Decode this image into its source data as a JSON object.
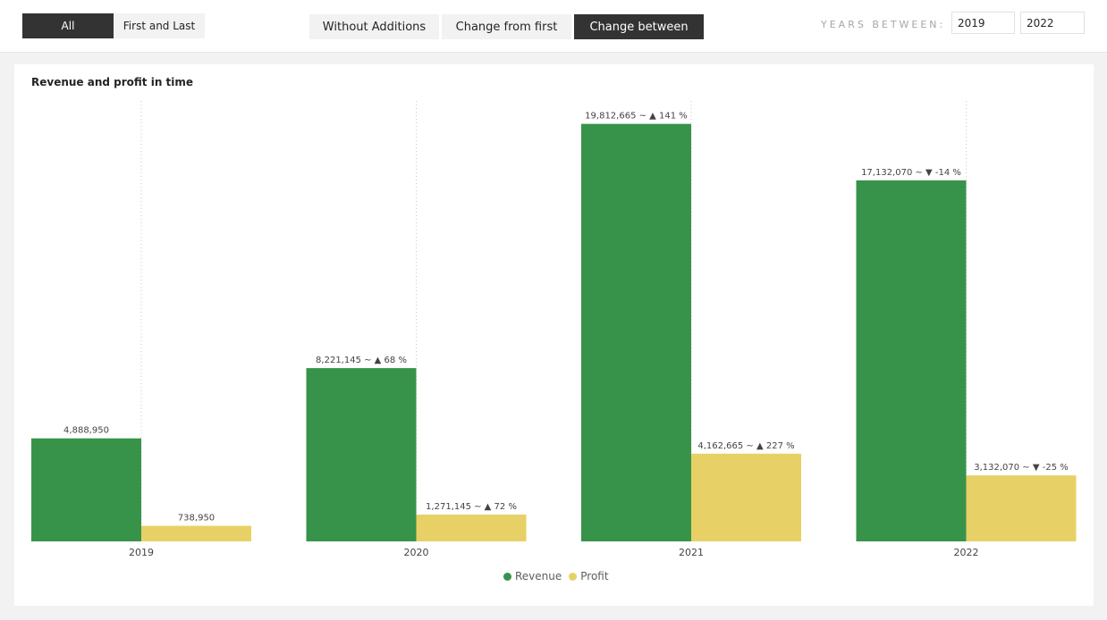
{
  "toggle": {
    "all_label": "All",
    "first_last_label": "First and Last",
    "active": "all"
  },
  "tabs": [
    {
      "label": "Without Additions",
      "active": false
    },
    {
      "label": "Change from first",
      "active": false
    },
    {
      "label": "Change between",
      "active": true
    }
  ],
  "years_between": {
    "label": "YEARS BETWEEN:",
    "from": "2019",
    "to": "2022"
  },
  "colors": {
    "revenue": "#37934a",
    "profit": "#e7d166",
    "active_button": "#333333"
  },
  "chart_data": {
    "type": "bar",
    "title": "Revenue and profit in time",
    "categories": [
      "2019",
      "2020",
      "2021",
      "2022"
    ],
    "series": [
      {
        "name": "Revenue",
        "values": [
          4888950,
          8221145,
          19812665,
          17132070
        ],
        "labels": [
          "4,888,950",
          "8,221,145 ~ ▲ 68 %",
          "19,812,665 ~ ▲ 141 %",
          "17,132,070 ~ ▼ -14 %"
        ]
      },
      {
        "name": "Profit",
        "values": [
          738950,
          1271145,
          4162665,
          3132070
        ],
        "labels": [
          "738,950",
          "1,271,145 ~ ▲ 72 %",
          "4,162,665 ~ ▲ 227 %",
          "3,132,070 ~ ▼ -25 %"
        ]
      }
    ],
    "ylim": [
      0,
      20900000
    ],
    "grid": false,
    "legend_position": "bottom-center"
  }
}
